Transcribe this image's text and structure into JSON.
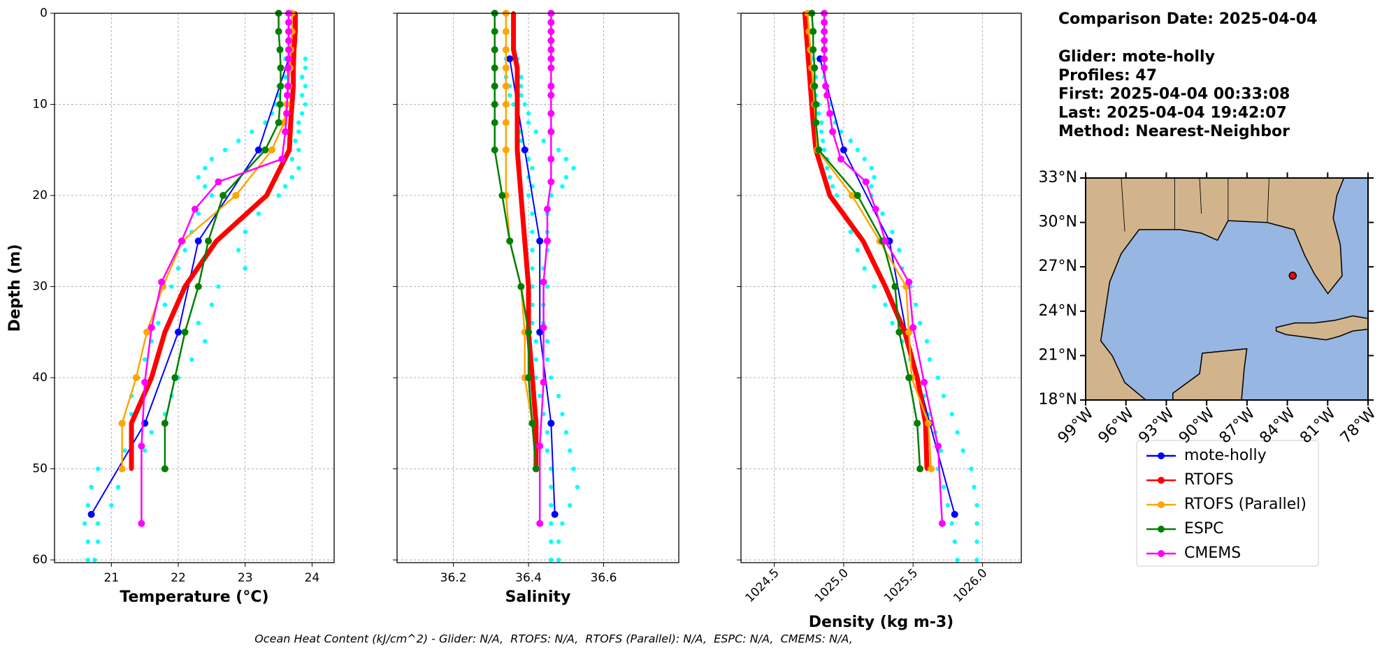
{
  "chart_data": [
    {
      "type": "line",
      "xlabel": "Temperature (°C)",
      "ylabel": "Depth (m)",
      "xlim": [
        20.15,
        24.33
      ],
      "ylim": [
        60.3,
        0
      ],
      "xticks": [
        21,
        22,
        23,
        24
      ],
      "yticks": [
        0,
        10,
        20,
        30,
        40,
        50,
        60
      ],
      "grid": true,
      "obs": {
        "color": "#00ffff",
        "depth": [
          5,
          6,
          7,
          8,
          9,
          10,
          11,
          12,
          13,
          14,
          15,
          16,
          17,
          18,
          19,
          20,
          22,
          24,
          26,
          28,
          30,
          32,
          34,
          36,
          38,
          40,
          42,
          44,
          46,
          48,
          50,
          52,
          54,
          56,
          58,
          60
        ],
        "series": [
          {
            "values": [
              23.6,
              23.55,
              23.6,
              23.5,
              23.5,
              23.45,
              23.4,
              23.3,
              23.1,
              22.9,
              22.7,
              22.5,
              22.4,
              22.3,
              22.4,
              22.5,
              22.3,
              22.2,
              22.1,
              22.0,
              21.9,
              21.8,
              21.7,
              21.6,
              21.5,
              21.4,
              21.3,
              21.3,
              21.3,
              21.2,
              20.8,
              20.7,
              20.65,
              20.6,
              20.65,
              20.65
            ]
          },
          {
            "values": [
              23.9,
              23.9,
              23.85,
              23.9,
              23.85,
              23.9,
              23.85,
              23.8,
              23.8,
              23.75,
              23.8,
              23.7,
              23.8,
              23.7,
              23.6,
              23.5,
              23.2,
              23.0,
              22.9,
              23.0,
              22.6,
              22.5,
              22.3,
              22.4,
              22.2,
              22.0,
              21.9,
              21.8,
              21.6,
              21.5,
              21.3,
              21.1,
              21.0,
              20.8,
              20.8,
              20.75
            ]
          }
        ]
      },
      "series": [
        {
          "name": "mote-holly",
          "color": "#0000ff",
          "depth": [
            5,
            15,
            25,
            35,
            45,
            55
          ],
          "values": [
            23.65,
            23.2,
            22.3,
            22.0,
            21.5,
            20.7
          ]
        },
        {
          "name": "RTOFS",
          "color": "#ff0000",
          "depth": [
            0,
            2,
            4,
            6,
            8,
            10,
            12,
            15,
            20,
            25,
            30,
            35,
            40,
            45,
            50
          ],
          "values": [
            23.75,
            23.75,
            23.73,
            23.72,
            23.72,
            23.7,
            23.68,
            23.66,
            23.32,
            22.57,
            22.1,
            21.8,
            21.6,
            21.3,
            21.3
          ]
        },
        {
          "name": "RTOFS (Parallel)",
          "color": "#ffa500",
          "depth": [
            0,
            2,
            4,
            6,
            8,
            10,
            12,
            15,
            20,
            25,
            30,
            35,
            40,
            45,
            50
          ],
          "values": [
            23.7,
            23.7,
            23.68,
            23.67,
            23.65,
            23.62,
            23.58,
            23.4,
            22.86,
            22.06,
            21.77,
            21.53,
            21.37,
            21.16,
            21.16
          ]
        },
        {
          "name": "ESPC",
          "color": "#008000",
          "depth": [
            0,
            2,
            4,
            6,
            8,
            10,
            12,
            15,
            20,
            25,
            30,
            35,
            40,
            45,
            50
          ],
          "values": [
            23.5,
            23.5,
            23.52,
            23.53,
            23.53,
            23.52,
            23.5,
            23.3,
            22.67,
            22.45,
            22.3,
            22.1,
            21.95,
            21.8,
            21.8
          ]
        },
        {
          "name": "CMEMS",
          "color": "#ff00ff",
          "depth": [
            0,
            1,
            2,
            3,
            4,
            5,
            6,
            8,
            9,
            11,
            13,
            16,
            18.5,
            21.5,
            25,
            29.5,
            34.5,
            40.5,
            47.5,
            56
          ],
          "values": [
            23.65,
            23.65,
            23.65,
            23.65,
            23.65,
            23.65,
            23.64,
            23.64,
            23.63,
            23.62,
            23.6,
            23.55,
            22.6,
            22.25,
            22.05,
            21.75,
            21.6,
            21.5,
            21.45,
            21.45
          ]
        }
      ]
    },
    {
      "type": "line",
      "xlabel": "Salinity",
      "xlim": [
        36.05,
        36.8
      ],
      "ylim": [
        60.3,
        0
      ],
      "xticks": [
        36.2,
        36.4,
        36.6
      ],
      "grid": true,
      "obs": {
        "color": "#00ffff",
        "depth": [
          5,
          6,
          7,
          8,
          9,
          10,
          11,
          12,
          13,
          14,
          15,
          16,
          17,
          18,
          19,
          20,
          22,
          24,
          26,
          28,
          30,
          32,
          34,
          36,
          38,
          40,
          42,
          44,
          46,
          48,
          50,
          52,
          54,
          56,
          58,
          60
        ],
        "series": [
          {
            "values": [
              36.34,
              36.34,
              36.34,
              36.35,
              36.35,
              36.36,
              36.37,
              36.37,
              36.38,
              36.38,
              36.39,
              36.4,
              36.41,
              36.4,
              36.41,
              36.4,
              36.41,
              36.41,
              36.41,
              36.41,
              36.41,
              36.41,
              36.41,
              36.42,
              36.42,
              36.42,
              36.43,
              36.44,
              36.45,
              36.45,
              36.46,
              36.46,
              36.46,
              36.46,
              36.46,
              36.46
            ]
          },
          {
            "values": [
              36.37,
              36.37,
              36.38,
              36.38,
              36.38,
              36.39,
              36.4,
              36.4,
              36.42,
              36.44,
              36.48,
              36.5,
              36.52,
              36.5,
              36.49,
              36.46,
              36.45,
              36.45,
              36.45,
              36.44,
              36.45,
              36.44,
              36.44,
              36.45,
              36.45,
              36.46,
              36.48,
              36.49,
              36.5,
              36.51,
              36.52,
              36.53,
              36.51,
              36.49,
              36.48,
              36.48
            ]
          }
        ]
      },
      "series": [
        {
          "color": "#0000ff",
          "depth": [
            5,
            15,
            25,
            35,
            45,
            55
          ],
          "values": [
            36.35,
            36.39,
            36.43,
            36.43,
            36.46,
            36.47
          ]
        },
        {
          "color": "#ff0000",
          "depth": [
            0,
            2,
            4,
            6,
            8,
            10,
            12,
            15,
            20,
            25,
            30,
            35,
            40,
            45,
            50
          ],
          "values": [
            36.36,
            36.36,
            36.36,
            36.37,
            36.37,
            36.37,
            36.37,
            36.37,
            36.38,
            36.39,
            36.4,
            36.4,
            36.41,
            36.42,
            36.42
          ]
        },
        {
          "color": "#ffa500",
          "depth": [
            0,
            2,
            4,
            6,
            8,
            10,
            12,
            15,
            20,
            25,
            30,
            35,
            40,
            45,
            50
          ],
          "values": [
            36.34,
            36.34,
            36.34,
            36.34,
            36.34,
            36.34,
            36.34,
            36.34,
            36.34,
            36.35,
            36.38,
            36.39,
            36.39,
            36.41,
            36.42
          ]
        },
        {
          "color": "#008000",
          "depth": [
            0,
            2,
            4,
            6,
            8,
            10,
            12,
            15,
            20,
            25,
            30,
            35,
            40,
            45,
            50
          ],
          "values": [
            36.31,
            36.31,
            36.31,
            36.31,
            36.31,
            36.31,
            36.31,
            36.31,
            36.33,
            36.35,
            36.38,
            36.4,
            36.4,
            36.41,
            36.42
          ]
        },
        {
          "color": "#ff00ff",
          "depth": [
            0,
            1,
            2,
            3,
            4,
            5,
            6,
            8,
            9,
            11,
            13,
            16,
            18.5,
            21.5,
            25,
            29.5,
            34.5,
            40.5,
            47.5,
            56
          ],
          "values": [
            36.46,
            36.46,
            36.46,
            36.46,
            36.46,
            36.46,
            36.46,
            36.46,
            36.46,
            36.46,
            36.46,
            36.46,
            36.46,
            36.45,
            36.45,
            36.44,
            36.44,
            36.44,
            36.43,
            36.43
          ]
        }
      ]
    },
    {
      "type": "line",
      "xlabel": "Density (kg m-3)",
      "xlim": [
        1024.26,
        1026.28
      ],
      "ylim": [
        60.3,
        0
      ],
      "xtick_rotation": 45,
      "xticks": [
        1024.5,
        {
          "value": 1025,
          "label": "1025.0"
        },
        1025.5,
        {
          "value": 1026,
          "label": "1026.0"
        }
      ],
      "grid": true,
      "obs": {
        "color": "#00ffff",
        "depth": [
          5,
          6,
          7,
          8,
          9,
          10,
          11,
          12,
          13,
          14,
          15,
          16,
          17,
          18,
          19,
          20,
          22,
          24,
          26,
          28,
          30,
          32,
          34,
          36,
          38,
          40,
          42,
          44,
          46,
          48,
          50,
          52,
          54,
          56,
          58,
          60
        ],
        "series": [
          {
            "values": [
              1024.78,
              1024.78,
              1024.8,
              1024.8,
              1024.8,
              1024.82,
              1024.82,
              1024.84,
              1024.84,
              1024.85,
              1024.86,
              1024.88,
              1024.88,
              1024.9,
              1024.92,
              1024.95,
              1025.0,
              1025.05,
              1025.1,
              1025.15,
              1025.22,
              1025.3,
              1025.35,
              1025.42,
              1025.48,
              1025.52,
              1025.58,
              1025.62,
              1025.66,
              1025.7,
              1025.68,
              1025.72,
              1025.75,
              1025.78,
              1025.8,
              1025.82
            ]
          },
          {
            "values": [
              1024.86,
              1024.86,
              1024.86,
              1024.88,
              1024.88,
              1024.9,
              1024.92,
              1024.94,
              1024.98,
              1025.05,
              1025.1,
              1025.15,
              1025.2,
              1025.22,
              1025.2,
              1025.2,
              1025.28,
              1025.35,
              1025.4,
              1025.42,
              1025.48,
              1025.52,
              1025.55,
              1025.6,
              1025.62,
              1025.68,
              1025.72,
              1025.78,
              1025.82,
              1025.86,
              1025.92,
              1025.94,
              1025.96,
              1025.96,
              1025.96,
              1025.96
            ]
          }
        ]
      },
      "series": [
        {
          "color": "#0000ff",
          "depth": [
            5,
            15,
            25,
            35,
            45,
            55
          ],
          "values": [
            1024.83,
            1025.0,
            1025.33,
            1025.45,
            1025.62,
            1025.8
          ]
        },
        {
          "color": "#ff0000",
          "depth": [
            0,
            2,
            4,
            6,
            8,
            10,
            12,
            15,
            20,
            25,
            30,
            35,
            40,
            45,
            50
          ],
          "values": [
            1024.72,
            1024.73,
            1024.74,
            1024.75,
            1024.76,
            1024.77,
            1024.78,
            1024.8,
            1024.9,
            1025.14,
            1025.3,
            1025.44,
            1025.53,
            1025.59,
            1025.6
          ]
        },
        {
          "color": "#ffa500",
          "depth": [
            0,
            2,
            4,
            6,
            8,
            10,
            12,
            15,
            20,
            25,
            30,
            35,
            40,
            45,
            50
          ],
          "values": [
            1024.74,
            1024.75,
            1024.76,
            1024.77,
            1024.78,
            1024.79,
            1024.8,
            1024.81,
            1025.06,
            1025.26,
            1025.45,
            1025.47,
            1025.49,
            1025.61,
            1025.63
          ]
        },
        {
          "color": "#008000",
          "depth": [
            0,
            2,
            4,
            6,
            8,
            10,
            12,
            15,
            20,
            25,
            30,
            35,
            40,
            45,
            50
          ],
          "values": [
            1024.77,
            1024.78,
            1024.78,
            1024.79,
            1024.79,
            1024.8,
            1024.8,
            1024.82,
            1025.1,
            1025.28,
            1025.37,
            1025.4,
            1025.47,
            1025.53,
            1025.55
          ]
        },
        {
          "color": "#ff00ff",
          "depth": [
            0,
            1,
            2,
            3,
            4,
            5,
            6,
            8,
            9,
            11,
            13,
            16,
            18.5,
            21.5,
            25,
            29.5,
            34.5,
            40.5,
            47.5,
            56
          ],
          "values": [
            1024.86,
            1024.86,
            1024.86,
            1024.86,
            1024.86,
            1024.86,
            1024.86,
            1024.87,
            1024.88,
            1024.9,
            1024.92,
            1024.98,
            1025.16,
            1025.23,
            1025.3,
            1025.47,
            1025.5,
            1025.58,
            1025.68,
            1025.71
          ]
        }
      ]
    }
  ],
  "info": [
    "Comparison Date: 2025-04-04",
    "Glider: mote-holly",
    "Profiles: 47",
    "First: 2025-04-04 00:33:08",
    "Last: 2025-04-04 19:42:07",
    "Method: Nearest-Neighbor"
  ],
  "map": {
    "xlim": [
      -99,
      -78
    ],
    "ylim": [
      18,
      33
    ],
    "xticks": [
      {
        "value": -99,
        "label": "99°W"
      },
      {
        "value": -96,
        "label": "96°W"
      },
      {
        "value": -93,
        "label": "93°W"
      },
      {
        "value": -90,
        "label": "90°W"
      },
      {
        "value": -87,
        "label": "87°W"
      },
      {
        "value": -84,
        "label": "84°W"
      },
      {
        "value": -81,
        "label": "81°W"
      },
      {
        "value": -78,
        "label": "78°W"
      }
    ],
    "yticks": [
      {
        "value": 18,
        "label": "18°N"
      },
      {
        "value": 21,
        "label": "21°N"
      },
      {
        "value": 24,
        "label": "24°N"
      },
      {
        "value": 27,
        "label": "27°N"
      },
      {
        "value": 30,
        "label": "30°N"
      },
      {
        "value": 33,
        "label": "33°N"
      }
    ],
    "glider": {
      "lon": -83.6,
      "lat": 26.4,
      "color": "#ff0000"
    }
  },
  "footer": "Ocean Heat Content (kJ/cm^2) - Glider: N/A,  RTOFS: N/A,  RTOFS (Parallel): N/A,  ESPC: N/A,  CMEMS: N/A,"
}
